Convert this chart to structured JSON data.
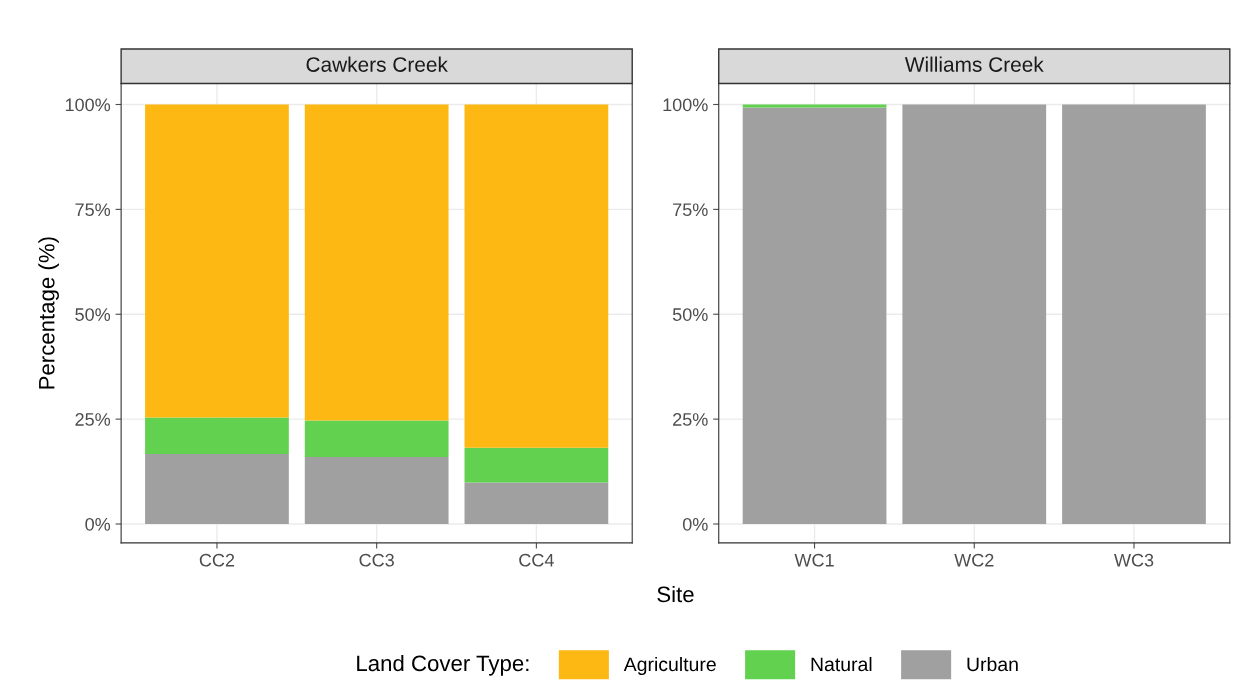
{
  "chart_data": [
    {
      "type": "bar",
      "title": "Cawkers Creek",
      "xlabel": "Site",
      "ylabel": "Percentage (%)",
      "legend_title": "Land Cover Type:",
      "legend": "bottom",
      "stacked": true,
      "grid": true,
      "categories": [
        "CC2",
        "CC3",
        "CC4"
      ],
      "ylim": [
        -4.5,
        105
      ],
      "yticks": [
        {
          "value": 0,
          "label": "0%"
        },
        {
          "value": 25,
          "label": "25%"
        },
        {
          "value": 50,
          "label": "50%"
        },
        {
          "value": 75,
          "label": "75%"
        },
        {
          "value": 100,
          "label": "100%"
        }
      ],
      "series": [
        {
          "name": "Urban",
          "color": "#a0a0a0",
          "values": [
            16.7,
            16.0,
            9.9
          ]
        },
        {
          "name": "Natural",
          "color": "#62d150",
          "values": [
            8.7,
            8.7,
            8.3
          ]
        },
        {
          "name": "Agriculture",
          "color": "#fdb813",
          "values": [
            74.6,
            75.3,
            81.8
          ]
        }
      ]
    },
    {
      "type": "bar",
      "title": "Williams Creek",
      "stacked": true,
      "grid": true,
      "categories": [
        "WC1",
        "WC2",
        "WC3"
      ],
      "ylim": [
        -4.5,
        105
      ],
      "yticks": [
        {
          "value": 0,
          "label": "0%"
        },
        {
          "value": 25,
          "label": "25%"
        },
        {
          "value": 50,
          "label": "50%"
        },
        {
          "value": 75,
          "label": "75%"
        },
        {
          "value": 100,
          "label": "100%"
        }
      ],
      "series": [
        {
          "color": "#a0a0a0",
          "values": [
            99.3,
            100,
            100
          ]
        },
        {
          "color": "#62d150",
          "values": [
            0.7,
            0,
            0
          ]
        },
        {
          "color": "#fdb813",
          "values": [
            null,
            0,
            0
          ]
        }
      ]
    }
  ]
}
